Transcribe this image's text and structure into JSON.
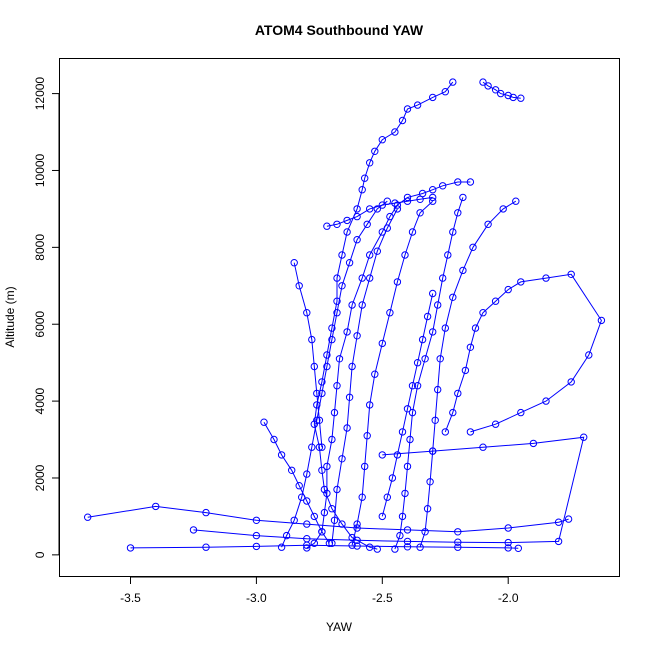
{
  "chart_data": {
    "type": "scatter",
    "title": "ATOM4 Southbound YAW",
    "xlabel": "YAW",
    "ylabel": "Altitude (m)",
    "xlim": [
      -3.78,
      -1.56
    ],
    "ylim": [
      -550,
      12900
    ],
    "xticks": [
      -3.5,
      -3.0,
      -2.5,
      -2.0
    ],
    "xtick_labels": [
      "-3.5",
      "-3.0",
      "-2.5",
      "-2.0"
    ],
    "yticks": [
      0,
      2000,
      4000,
      6000,
      8000,
      10000,
      12000
    ],
    "ytick_labels": [
      "0",
      "2000",
      "4000",
      "6000",
      "8000",
      "10000",
      "12000"
    ],
    "grid": false,
    "connected": true,
    "color": "#0000ff",
    "marker": "open-circle",
    "series": [
      {
        "x": [
          -2.52,
          -2.55,
          -2.62,
          -2.66,
          -2.7,
          -2.73,
          -2.74,
          -2.75,
          -2.77,
          -2.76,
          -2.74,
          -2.72,
          -2.7,
          -2.68,
          -2.68,
          -2.66,
          -2.64,
          -2.6,
          -2.58,
          -2.57,
          -2.55,
          -2.53,
          -2.5,
          -2.45,
          -2.42,
          -2.4,
          -2.36,
          -2.3,
          -2.25,
          -2.22
        ],
        "y": [
          150,
          200,
          450,
          800,
          1200,
          1700,
          2200,
          2800,
          3400,
          3900,
          4500,
          5200,
          5900,
          6600,
          7200,
          7800,
          8400,
          9000,
          9500,
          9800,
          10200,
          10500,
          10800,
          11000,
          11300,
          11600,
          11700,
          11900,
          12050,
          12300
        ]
      },
      {
        "x": [
          -2.8,
          -2.77,
          -2.74,
          -2.73,
          -2.72,
          -2.72,
          -2.7,
          -2.69,
          -2.68,
          -2.67,
          -2.64,
          -2.62,
          -2.58,
          -2.55,
          -2.5,
          -2.47,
          -2.44,
          -2.4,
          -2.34,
          -2.3,
          -2.26,
          -2.2,
          -2.15
        ],
        "y": [
          180,
          300,
          600,
          1100,
          1600,
          2300,
          3000,
          3700,
          4400,
          5100,
          5800,
          6500,
          7200,
          7800,
          8400,
          8800,
          9100,
          9300,
          9400,
          9500,
          9600,
          9700,
          9700
        ]
      },
      {
        "x": [
          -2.9,
          -2.88,
          -2.85,
          -2.82,
          -2.8,
          -2.78,
          -2.76,
          -2.74,
          -2.72,
          -2.7,
          -2.68,
          -2.66,
          -2.63,
          -2.6,
          -2.56,
          -2.52,
          -2.48
        ],
        "y": [
          200,
          500,
          900,
          1500,
          2100,
          2800,
          3500,
          4200,
          4900,
          5600,
          6300,
          7000,
          7600,
          8200,
          8600,
          9000,
          9200
        ]
      },
      {
        "x": [
          -2.45,
          -2.43,
          -2.42,
          -2.41,
          -2.4,
          -2.39,
          -2.38,
          -2.36,
          -2.33,
          -2.3,
          -2.28,
          -2.26,
          -2.24,
          -2.22,
          -2.2,
          -2.18
        ],
        "y": [
          150,
          500,
          1000,
          1600,
          2300,
          3000,
          3700,
          4400,
          5100,
          5800,
          6500,
          7200,
          7800,
          8400,
          8900,
          9300
        ]
      },
      {
        "x": [
          -2.35,
          -2.33,
          -2.32,
          -2.31,
          -2.3,
          -2.29,
          -2.28,
          -2.27,
          -2.25,
          -2.22,
          -2.18,
          -2.14,
          -2.08,
          -2.02,
          -1.97
        ],
        "y": [
          200,
          600,
          1200,
          1900,
          2700,
          3500,
          4300,
          5100,
          5900,
          6700,
          7400,
          8000,
          8600,
          9000,
          9200
        ]
      },
      {
        "x": [
          -2.62,
          -2.6,
          -2.58,
          -2.57,
          -2.56,
          -2.55,
          -2.53,
          -2.5,
          -2.47,
          -2.44,
          -2.41,
          -2.38,
          -2.35,
          -2.3
        ],
        "y": [
          250,
          800,
          1500,
          2300,
          3100,
          3900,
          4700,
          5500,
          6300,
          7100,
          7800,
          8400,
          8900,
          9200
        ]
      },
      {
        "x": [
          -2.7,
          -2.69,
          -2.68,
          -2.66,
          -2.64,
          -2.63,
          -2.62,
          -2.6,
          -2.58,
          -2.55,
          -2.52,
          -2.48,
          -2.44
        ],
        "y": [
          300,
          900,
          1700,
          2500,
          3300,
          4100,
          4900,
          5700,
          6500,
          7200,
          7900,
          8500,
          9000
        ]
      },
      {
        "x": [
          -2.25,
          -2.22,
          -2.2,
          -2.17,
          -2.15,
          -2.13,
          -2.1,
          -2.05,
          -2.0,
          -1.95,
          -1.85,
          -1.75,
          -1.63,
          -1.68,
          -1.75,
          -1.85,
          -1.95,
          -2.05,
          -2.15
        ],
        "y": [
          3200,
          3700,
          4200,
          4800,
          5400,
          5900,
          6300,
          6600,
          6900,
          7100,
          7200,
          7300,
          6100,
          5200,
          4500,
          4000,
          3700,
          3400,
          3200
        ]
      },
      {
        "x": [
          -3.67,
          -3.4,
          -3.2,
          -3.0,
          -2.8,
          -2.6,
          -2.4,
          -2.2,
          -2.0,
          -1.8,
          -1.76
        ],
        "y": [
          980,
          1260,
          1100,
          900,
          800,
          700,
          650,
          600,
          700,
          850,
          930
        ]
      },
      {
        "x": [
          -3.5,
          -3.2,
          -3.0,
          -2.8,
          -2.6,
          -2.4,
          -2.2,
          -2.0,
          -1.96
        ],
        "y": [
          180,
          200,
          220,
          250,
          230,
          210,
          200,
          180,
          170
        ]
      },
      {
        "x": [
          -3.25,
          -3.0,
          -2.8,
          -2.6,
          -2.4,
          -2.2,
          -2.0,
          -1.8,
          -1.7,
          -1.9,
          -2.1,
          -2.3,
          -2.5
        ],
        "y": [
          650,
          500,
          420,
          380,
          350,
          330,
          320,
          350,
          3060,
          2900,
          2800,
          2700,
          2600
        ]
      },
      {
        "x": [
          -2.97,
          -2.93,
          -2.9,
          -2.86,
          -2.83,
          -2.8,
          -2.77,
          -2.74,
          -2.71
        ],
        "y": [
          3450,
          3000,
          2600,
          2200,
          1800,
          1400,
          1000,
          600,
          300
        ]
      },
      {
        "x": [
          -2.85,
          -2.83,
          -2.8,
          -2.78,
          -2.77,
          -2.76,
          -2.75,
          -2.74
        ],
        "y": [
          7600,
          7000,
          6300,
          5600,
          4900,
          4200,
          3500,
          2800
        ]
      },
      {
        "x": [
          -2.1,
          -2.08,
          -2.05,
          -2.03,
          -2.0,
          -1.98,
          -1.95
        ],
        "y": [
          12300,
          12200,
          12100,
          12000,
          11950,
          11900,
          11880
        ]
      },
      {
        "x": [
          -2.72,
          -2.68,
          -2.64,
          -2.6,
          -2.55,
          -2.5,
          -2.45,
          -2.4,
          -2.35,
          -2.3
        ],
        "y": [
          8550,
          8600,
          8700,
          8800,
          9000,
          9100,
          9150,
          9200,
          9250,
          9300
        ]
      },
      {
        "x": [
          -2.5,
          -2.48,
          -2.46,
          -2.44,
          -2.42,
          -2.4,
          -2.38,
          -2.36,
          -2.34,
          -2.32,
          -2.3
        ],
        "y": [
          1000,
          1500,
          2000,
          2600,
          3200,
          3800,
          4400,
          5000,
          5600,
          6200,
          6800
        ]
      }
    ]
  }
}
